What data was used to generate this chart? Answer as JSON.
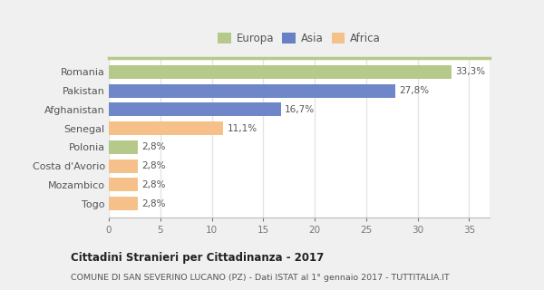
{
  "categories": [
    "Romania",
    "Pakistan",
    "Afghanistan",
    "Senegal",
    "Polonia",
    "Costa d'Avorio",
    "Mozambico",
    "Togo"
  ],
  "values": [
    33.3,
    27.8,
    16.7,
    11.1,
    2.8,
    2.8,
    2.8,
    2.8
  ],
  "labels": [
    "33,3%",
    "27,8%",
    "16,7%",
    "11,1%",
    "2,8%",
    "2,8%",
    "2,8%",
    "2,8%"
  ],
  "colors": [
    "#b5c98a",
    "#6f86c8",
    "#6f86c8",
    "#f5c08a",
    "#b5c98a",
    "#f5c08a",
    "#f5c08a",
    "#f5c08a"
  ],
  "legend_labels": [
    "Europa",
    "Asia",
    "Africa"
  ],
  "legend_colors": [
    "#b5c98a",
    "#6880c4",
    "#f5c08a"
  ],
  "xlim": [
    0,
    37
  ],
  "xticks": [
    0,
    5,
    10,
    15,
    20,
    25,
    30,
    35
  ],
  "title": "Cittadini Stranieri per Cittadinanza - 2017",
  "subtitle": "COMUNE DI SAN SEVERINO LUCANO (PZ) - Dati ISTAT al 1° gennaio 2017 - TUTTITALIA.IT",
  "fig_bg_color": "#f0f0f0",
  "plot_bg_color": "#ffffff",
  "grid_color": "#e0e8e0",
  "bar_height": 0.72
}
